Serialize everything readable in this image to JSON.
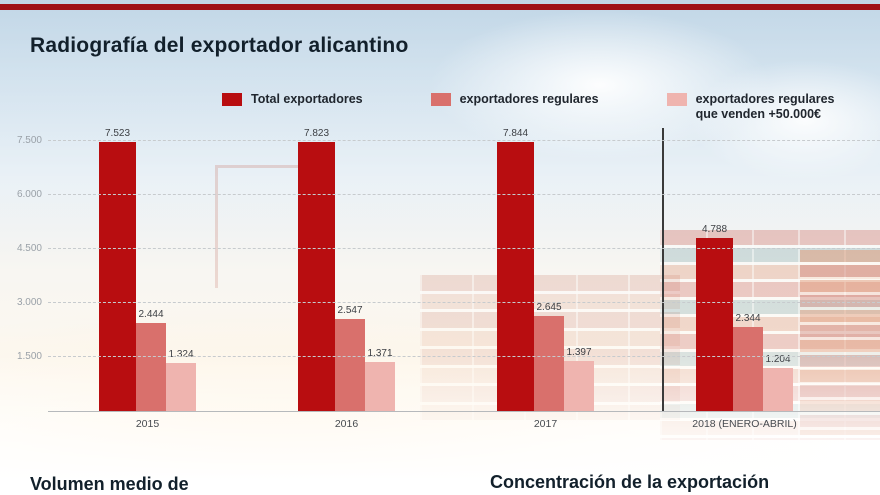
{
  "title": "Radiografía del exportador alicantino",
  "accent_color": "#9f1117",
  "legend": [
    {
      "lines": [
        "Total exportadores"
      ],
      "color": "#b80d10"
    },
    {
      "lines": [
        "exportadores regulares"
      ],
      "color": "#d9706c"
    },
    {
      "lines": [
        "exportadores regulares",
        "que venden +50.000€"
      ],
      "color": "#efb4af"
    }
  ],
  "chart_data": {
    "type": "bar",
    "title": "Radiografía del exportador alicantino",
    "categories": [
      "2015",
      "2016",
      "2017",
      "2018 (ENERO-ABRIL)"
    ],
    "series": [
      {
        "name": "Total exportadores",
        "color": "#b80d10",
        "values": [
          7523,
          7823,
          7844,
          4788
        ],
        "labels": [
          "7.523",
          "7.823",
          "7.844",
          "4.788"
        ]
      },
      {
        "name": "exportadores regulares",
        "color": "#d9706c",
        "values": [
          2444,
          2547,
          2645,
          2344
        ],
        "labels": [
          "2.444",
          "2.547",
          "2.645",
          "2.344"
        ]
      },
      {
        "name": "exportadores regulares que venden +50.000€",
        "color": "#efb4af",
        "values": [
          1324,
          1371,
          1397,
          1204
        ],
        "labels": [
          "1.324",
          "1.371",
          "1.397",
          "1.204"
        ]
      }
    ],
    "y_ticks": [
      {
        "label": "7.500",
        "value": 7500
      },
      {
        "label": "6.000",
        "value": 6000
      },
      {
        "label": "4.500",
        "value": 4500
      },
      {
        "label": "3.000",
        "value": 3000
      },
      {
        "label": "1.500",
        "value": 1500
      }
    ],
    "ylim": [
      0,
      7880
    ],
    "grid": "dashed-horizontal",
    "legend_position": "top",
    "divider_before_category_index": 3
  },
  "footer": {
    "left_title": "Volumen medio de",
    "right_title": "Concentración de la exportación"
  }
}
